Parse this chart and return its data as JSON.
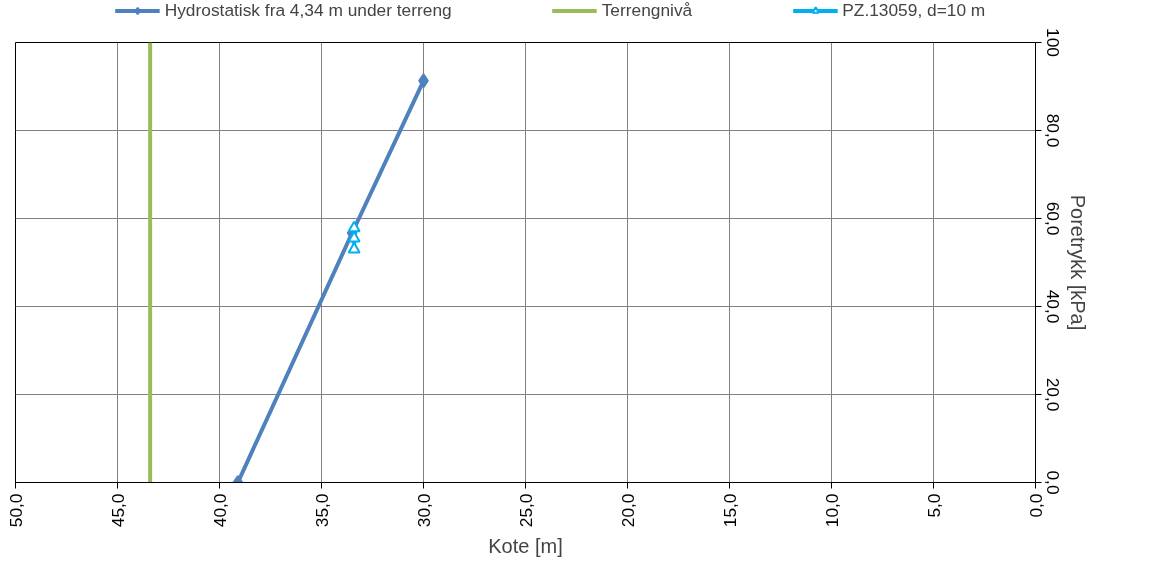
{
  "chart_data": {
    "type": "line",
    "xlabel": "Kote [m]",
    "ylabel": "Poretrykk [kPa]",
    "xlim": [
      50,
      0
    ],
    "ylim": [
      0,
      100
    ],
    "xticks": [
      {
        "value": 50,
        "label": "50,0"
      },
      {
        "value": 45,
        "label": "45,0"
      },
      {
        "value": 40,
        "label": "40,0"
      },
      {
        "value": 35,
        "label": "35,0"
      },
      {
        "value": 30,
        "label": "30,0"
      },
      {
        "value": 25,
        "label": "25,0"
      },
      {
        "value": 20,
        "label": "20,0"
      },
      {
        "value": 15,
        "label": "15,0"
      },
      {
        "value": 10,
        "label": "10,0"
      },
      {
        "value": 5,
        "label": "5,0"
      },
      {
        "value": 0,
        "label": "0,0"
      }
    ],
    "yticks": [
      {
        "value": 0,
        "label": "0,0"
      },
      {
        "value": 20,
        "label": "20,0"
      },
      {
        "value": 40,
        "label": "40,0"
      },
      {
        "value": 60,
        "label": "60,0"
      },
      {
        "value": 80,
        "label": "80,0"
      },
      100
    ],
    "grid": true,
    "legend": "top",
    "series": [
      {
        "name": "Hydrostatisk fra 4,34 m under terreng",
        "color": "#4f81bd",
        "x": [
          39.1,
          33.5,
          30.0
        ],
        "values": [
          0,
          56.7,
          91.3
        ],
        "marker": "diamond"
      },
      {
        "name": "Terrengnivå",
        "color": "#9bbb59",
        "x": [
          43.4,
          43.4
        ],
        "values": [
          0,
          100
        ],
        "marker": "none"
      },
      {
        "name": "PZ.13059, d=10 m",
        "color": "#00b0f0",
        "x": [
          33.4,
          33.4,
          33.4
        ],
        "values": [
          57.8,
          55.5,
          53.0
        ],
        "marker": "triangle"
      }
    ]
  }
}
